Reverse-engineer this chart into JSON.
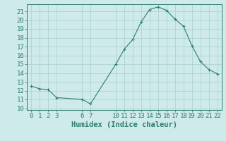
{
  "x": [
    0,
    1,
    2,
    3,
    6,
    7,
    10,
    11,
    12,
    13,
    14,
    15,
    16,
    17,
    18,
    19,
    20,
    21,
    22
  ],
  "y": [
    12.5,
    12.2,
    12.1,
    11.2,
    11.0,
    10.5,
    15.0,
    16.7,
    17.8,
    19.8,
    21.2,
    21.5,
    21.1,
    20.1,
    19.3,
    17.1,
    15.3,
    14.4,
    13.9
  ],
  "line_color": "#2e7d6e",
  "marker": "+",
  "marker_color": "#2e7d6e",
  "bg_color": "#ceeaea",
  "grid_color_major": "#aacece",
  "grid_color_minor": "#bcdada",
  "xlabel": "Humidex (Indice chaleur)",
  "xlim": [
    -0.5,
    22.5
  ],
  "ylim": [
    9.8,
    21.8
  ],
  "yticks": [
    10,
    11,
    12,
    13,
    14,
    15,
    16,
    17,
    18,
    19,
    20,
    21
  ],
  "xticks": [
    0,
    1,
    2,
    3,
    6,
    7,
    10,
    11,
    12,
    13,
    14,
    15,
    16,
    17,
    18,
    19,
    20,
    21,
    22
  ],
  "tick_fontsize": 6.5,
  "xlabel_fontsize": 7.5,
  "label_color": "#2e7d6e"
}
